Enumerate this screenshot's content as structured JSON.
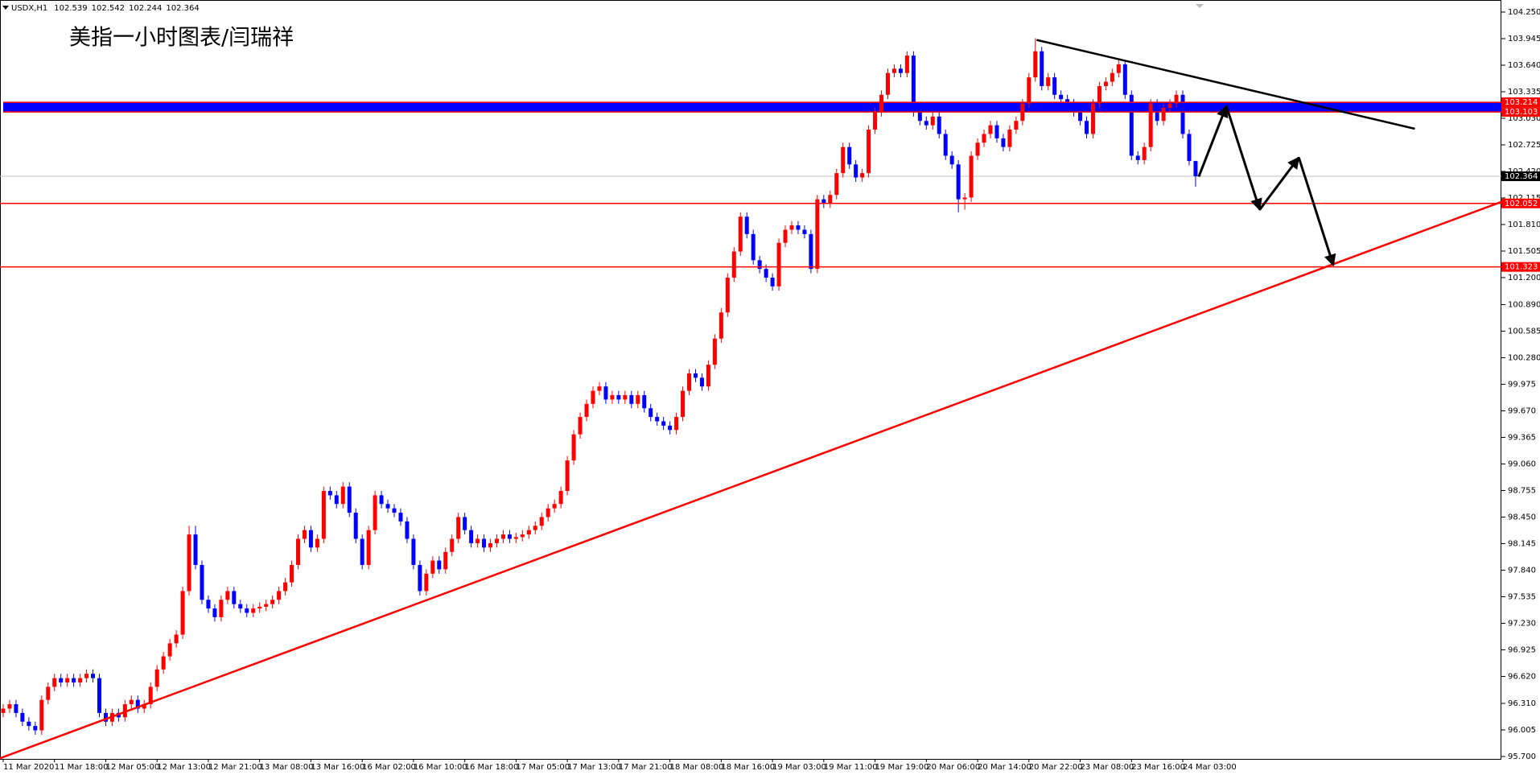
{
  "chart_data": {
    "type": "candlestick",
    "symbol": "USDX,H1",
    "title": "美指一小时图表/闫瑞祥",
    "bull_color": "#ff0000",
    "bear_color": "#0000ff",
    "categories": [
      "11 Mar 2020",
      null,
      null,
      null,
      null,
      null,
      null,
      null,
      "11 Mar 18:00",
      null,
      null,
      null,
      null,
      null,
      null,
      null,
      "12 Mar 05:00",
      null,
      null,
      null,
      null,
      null,
      null,
      null,
      "12 Mar 13:00",
      null,
      null,
      null,
      null,
      null,
      null,
      null,
      "12 Mar 21:00",
      null,
      null,
      null,
      null,
      null,
      null,
      null,
      "13 Mar 08:00",
      null,
      null,
      null,
      null,
      null,
      null,
      null,
      "13 Mar 16:00",
      null,
      null,
      null,
      null,
      null,
      null,
      null,
      "16 Mar 02:00",
      null,
      null,
      null,
      null,
      null,
      null,
      null,
      "16 Mar 10:00",
      null,
      null,
      null,
      null,
      null,
      null,
      null,
      "16 Mar 18:00",
      null,
      null,
      null,
      null,
      null,
      null,
      null,
      "17 Mar 05:00",
      null,
      null,
      null,
      null,
      null,
      null,
      null,
      "17 Mar 13:00",
      null,
      null,
      null,
      null,
      null,
      null,
      null,
      "17 Mar 21:00",
      null,
      null,
      null,
      null,
      null,
      null,
      null,
      "18 Mar 08:00",
      null,
      null,
      null,
      null,
      null,
      null,
      null,
      "18 Mar 16:00",
      null,
      null,
      null,
      null,
      null,
      null,
      null,
      "19 Mar 03:00",
      null,
      null,
      null,
      null,
      null,
      null,
      null,
      "19 Mar 11:00",
      null,
      null,
      null,
      null,
      null,
      null,
      null,
      "19 Mar 19:00",
      null,
      null,
      null,
      null,
      null,
      null,
      null,
      "20 Mar 06:00",
      null,
      null,
      null,
      null,
      null,
      null,
      null,
      "20 Mar 14:00",
      null,
      null,
      null,
      null,
      null,
      null,
      null,
      "20 Mar 22:00",
      null,
      null,
      null,
      null,
      null,
      null,
      null,
      "23 Mar 08:00",
      null,
      null,
      null,
      null,
      null,
      null,
      null,
      "23 Mar 16:00",
      null,
      null,
      null,
      null,
      null,
      null,
      null,
      "24 Mar 03:00",
      null,
      null
    ],
    "open": [
      96.2,
      96.25,
      96.3,
      96.2,
      96.1,
      96.05,
      96.0,
      96.35,
      96.5,
      96.6,
      96.55,
      96.6,
      96.55,
      96.6,
      96.65,
      96.6,
      96.2,
      96.1,
      96.2,
      96.15,
      96.3,
      96.35,
      96.25,
      96.3,
      96.5,
      96.7,
      96.85,
      97.0,
      97.1,
      97.6,
      98.25,
      97.9,
      97.5,
      97.4,
      97.3,
      97.5,
      97.6,
      97.45,
      97.4,
      97.35,
      97.4,
      97.42,
      97.45,
      97.5,
      97.6,
      97.7,
      97.9,
      98.2,
      98.3,
      98.1,
      98.2,
      98.75,
      98.7,
      98.6,
      98.8,
      98.5,
      98.2,
      97.9,
      98.3,
      98.7,
      98.6,
      98.55,
      98.5,
      98.4,
      98.2,
      97.9,
      97.6,
      97.8,
      97.95,
      97.85,
      98.05,
      98.2,
      98.45,
      98.3,
      98.15,
      98.2,
      98.1,
      98.15,
      98.2,
      98.25,
      98.2,
      98.22,
      98.25,
      98.3,
      98.35,
      98.45,
      98.55,
      98.6,
      98.75,
      99.1,
      99.4,
      99.6,
      99.75,
      99.9,
      99.95,
      99.8,
      99.85,
      99.8,
      99.85,
      99.75,
      99.85,
      99.7,
      99.6,
      99.55,
      99.5,
      99.45,
      99.6,
      99.9,
      100.1,
      100.05,
      99.95,
      100.2,
      100.5,
      100.8,
      101.2,
      101.5,
      101.9,
      101.7,
      101.4,
      101.3,
      101.2,
      101.1,
      101.6,
      101.75,
      101.8,
      101.75,
      101.7,
      101.3,
      102.1,
      102.05,
      102.15,
      102.4,
      102.7,
      102.5,
      102.35,
      102.4,
      102.9,
      103.1,
      103.3,
      103.55,
      103.6,
      103.55,
      103.75,
      103.1,
      103.0,
      102.95,
      103.05,
      102.85,
      102.6,
      102.5,
      102.1,
      102.12,
      102.6,
      102.75,
      102.85,
      102.95,
      102.8,
      102.7,
      102.9,
      103.0,
      103.2,
      103.5,
      103.8,
      103.4,
      103.5,
      103.3,
      103.25,
      103.2,
      103.1,
      103.0,
      102.85,
      103.2,
      103.4,
      103.45,
      103.55,
      103.65,
      103.3,
      102.6,
      102.55,
      102.7,
      103.2,
      103.0,
      103.15,
      103.2,
      103.3,
      102.85,
      102.539
    ],
    "high": [
      96.3,
      96.35,
      96.35,
      96.25,
      96.15,
      96.1,
      96.4,
      96.55,
      96.65,
      96.65,
      96.65,
      96.65,
      96.65,
      96.7,
      96.7,
      96.65,
      96.25,
      96.25,
      96.25,
      96.35,
      96.4,
      96.4,
      96.35,
      96.55,
      96.75,
      96.9,
      97.05,
      97.15,
      97.65,
      98.35,
      98.35,
      97.95,
      97.55,
      97.45,
      97.55,
      97.65,
      97.65,
      97.5,
      97.45,
      97.45,
      97.47,
      97.5,
      97.55,
      97.65,
      97.75,
      97.95,
      98.25,
      98.35,
      98.35,
      98.25,
      98.8,
      98.8,
      98.75,
      98.85,
      98.85,
      98.55,
      98.25,
      98.35,
      98.75,
      98.75,
      98.65,
      98.6,
      98.55,
      98.45,
      98.25,
      97.95,
      97.85,
      98.0,
      98.0,
      98.1,
      98.25,
      98.5,
      98.5,
      98.35,
      98.25,
      98.25,
      98.2,
      98.25,
      98.3,
      98.3,
      98.27,
      98.3,
      98.35,
      98.4,
      98.5,
      98.6,
      98.65,
      98.8,
      99.15,
      99.45,
      99.65,
      99.8,
      99.95,
      100.0,
      100.0,
      99.9,
      99.9,
      99.9,
      99.9,
      99.9,
      99.9,
      99.75,
      99.65,
      99.6,
      99.55,
      99.65,
      99.95,
      100.15,
      100.15,
      100.1,
      100.25,
      100.55,
      100.85,
      101.25,
      101.55,
      101.95,
      101.95,
      101.75,
      101.45,
      101.35,
      101.25,
      101.65,
      101.8,
      101.85,
      101.85,
      101.8,
      101.75,
      102.15,
      102.15,
      102.2,
      102.45,
      102.75,
      102.75,
      102.55,
      102.45,
      102.95,
      103.15,
      103.35,
      103.6,
      103.65,
      103.65,
      103.8,
      103.8,
      103.15,
      103.05,
      103.1,
      103.1,
      102.9,
      102.65,
      102.55,
      102.17,
      102.65,
      102.8,
      102.9,
      103.0,
      103.0,
      102.85,
      102.95,
      103.05,
      103.25,
      103.55,
      103.95,
      103.85,
      103.55,
      103.55,
      103.35,
      103.3,
      103.25,
      103.15,
      103.05,
      103.25,
      103.45,
      103.5,
      103.6,
      103.7,
      103.7,
      103.35,
      102.65,
      102.75,
      103.25,
      103.25,
      103.2,
      103.25,
      103.35,
      103.35,
      102.9,
      102.542
    ],
    "low": [
      96.15,
      96.2,
      96.15,
      96.05,
      96.0,
      95.95,
      95.95,
      96.3,
      96.45,
      96.5,
      96.5,
      96.5,
      96.5,
      96.55,
      96.55,
      96.15,
      96.05,
      96.05,
      96.1,
      96.1,
      96.25,
      96.2,
      96.2,
      96.25,
      96.45,
      96.65,
      96.8,
      96.95,
      97.05,
      97.55,
      97.85,
      97.45,
      97.35,
      97.25,
      97.25,
      97.45,
      97.4,
      97.35,
      97.3,
      97.3,
      97.35,
      97.37,
      97.4,
      97.45,
      97.55,
      97.65,
      97.85,
      98.15,
      98.05,
      98.05,
      98.15,
      98.65,
      98.55,
      98.55,
      98.45,
      98.15,
      97.85,
      97.85,
      98.25,
      98.55,
      98.5,
      98.45,
      98.35,
      98.15,
      97.85,
      97.55,
      97.55,
      97.75,
      97.8,
      97.8,
      98.0,
      98.15,
      98.25,
      98.1,
      98.1,
      98.05,
      98.05,
      98.1,
      98.15,
      98.15,
      98.15,
      98.17,
      98.2,
      98.25,
      98.3,
      98.4,
      98.5,
      98.55,
      98.7,
      99.05,
      99.35,
      99.55,
      99.7,
      99.85,
      99.75,
      99.75,
      99.75,
      99.75,
      99.7,
      99.7,
      99.65,
      99.55,
      99.5,
      99.45,
      99.4,
      99.4,
      99.55,
      99.85,
      100.0,
      99.9,
      99.9,
      100.15,
      100.45,
      100.75,
      101.15,
      101.45,
      101.65,
      101.35,
      101.25,
      101.15,
      101.05,
      101.05,
      101.55,
      101.7,
      101.7,
      101.65,
      101.25,
      101.25,
      102.0,
      102.0,
      102.1,
      102.35,
      102.45,
      102.3,
      102.3,
      102.35,
      102.85,
      103.05,
      103.25,
      103.5,
      103.5,
      103.5,
      103.05,
      102.95,
      102.9,
      102.9,
      102.8,
      102.55,
      102.45,
      101.95,
      101.98,
      102.07,
      102.55,
      102.7,
      102.8,
      102.75,
      102.65,
      102.65,
      102.85,
      102.95,
      103.15,
      103.45,
      103.35,
      103.35,
      103.25,
      103.2,
      103.15,
      103.05,
      102.95,
      102.8,
      102.8,
      103.15,
      103.35,
      103.4,
      103.5,
      103.25,
      102.55,
      102.5,
      102.5,
      102.65,
      102.95,
      102.95,
      103.1,
      103.15,
      102.8,
      102.489,
      102.244
    ],
    "close": [
      96.25,
      96.3,
      96.2,
      96.1,
      96.05,
      96.0,
      96.35,
      96.5,
      96.6,
      96.55,
      96.6,
      96.55,
      96.6,
      96.65,
      96.6,
      96.2,
      96.1,
      96.2,
      96.15,
      96.3,
      96.35,
      96.25,
      96.3,
      96.5,
      96.7,
      96.85,
      97.0,
      97.1,
      97.6,
      98.25,
      97.9,
      97.5,
      97.4,
      97.3,
      97.5,
      97.6,
      97.45,
      97.4,
      97.35,
      97.4,
      97.42,
      97.45,
      97.5,
      97.6,
      97.7,
      97.9,
      98.2,
      98.3,
      98.1,
      98.2,
      98.75,
      98.7,
      98.6,
      98.8,
      98.5,
      98.2,
      97.9,
      98.3,
      98.7,
      98.6,
      98.55,
      98.5,
      98.4,
      98.2,
      97.9,
      97.6,
      97.8,
      97.95,
      97.85,
      98.05,
      98.2,
      98.45,
      98.3,
      98.15,
      98.2,
      98.1,
      98.15,
      98.2,
      98.25,
      98.2,
      98.22,
      98.25,
      98.3,
      98.35,
      98.45,
      98.55,
      98.6,
      98.75,
      99.1,
      99.4,
      99.6,
      99.75,
      99.9,
      99.95,
      99.8,
      99.85,
      99.8,
      99.85,
      99.75,
      99.85,
      99.7,
      99.6,
      99.55,
      99.5,
      99.45,
      99.6,
      99.9,
      100.1,
      100.05,
      99.95,
      100.2,
      100.5,
      100.8,
      101.2,
      101.5,
      101.9,
      101.7,
      101.4,
      101.3,
      101.2,
      101.1,
      101.6,
      101.75,
      101.8,
      101.75,
      101.7,
      101.3,
      102.1,
      102.05,
      102.15,
      102.4,
      102.7,
      102.5,
      102.35,
      102.4,
      102.9,
      103.1,
      103.3,
      103.55,
      103.6,
      103.55,
      103.75,
      103.1,
      103.0,
      102.95,
      103.05,
      102.85,
      102.6,
      102.5,
      102.1,
      102.12,
      102.6,
      102.75,
      102.85,
      102.95,
      102.8,
      102.7,
      102.9,
      103.0,
      103.2,
      103.5,
      103.8,
      103.4,
      103.5,
      103.3,
      103.25,
      103.2,
      103.1,
      103.0,
      102.85,
      103.2,
      103.4,
      103.45,
      103.55,
      103.65,
      103.3,
      102.6,
      102.55,
      102.7,
      103.2,
      103.0,
      103.15,
      103.2,
      103.3,
      102.85,
      102.539,
      102.364
    ],
    "xlim": [
      -0.5,
      233.7
    ],
    "ylim": [
      95.7,
      104.25
    ],
    "yticks": [
      {
        "value": 104.25,
        "label": "104.250"
      },
      103.945,
      {
        "value": 103.64,
        "label": "103.640"
      },
      103.335,
      {
        "value": 103.03,
        "label": "103.030"
      },
      102.725,
      {
        "value": 102.42,
        "label": "102.420"
      },
      102.115,
      {
        "value": 101.81,
        "label": "101.810"
      },
      101.505,
      {
        "value": 101.2,
        "label": "101.200"
      },
      {
        "value": 100.89,
        "label": "100.890"
      },
      100.585,
      {
        "value": 100.28,
        "label": "100.280"
      },
      99.975,
      {
        "value": 99.67,
        "label": "99.670"
      },
      99.365,
      {
        "value": 99.06,
        "label": "99.060"
      },
      98.755,
      {
        "value": 98.45,
        "label": "98.450"
      },
      98.145,
      {
        "value": 97.84,
        "label": "97.840"
      },
      97.535,
      {
        "value": 97.23,
        "label": "97.230"
      },
      96.925,
      {
        "value": 96.62,
        "label": "96.620"
      },
      {
        "value": 96.31,
        "label": "96.310"
      },
      96.005,
      {
        "value": 95.7,
        "label": "95.700"
      }
    ],
    "levels": [
      103.214,
      103.103,
      102.052,
      101.323
    ],
    "level_color": "#ff0000",
    "band_color": "#0000ff",
    "price_line_color": "#c0c0c0",
    "trendlines": [
      {
        "color": "#ff0000",
        "points": [
          [
            -0.5,
            95.68
          ],
          [
            233.7,
            102.07
          ]
        ]
      },
      {
        "color": "#000000",
        "points": [
          [
            161.2,
            103.93
          ],
          [
            220.2,
            102.91
          ]
        ]
      }
    ],
    "arrows": {
      "color": "#000000",
      "points": [
        [
          186.5,
          102.36
        ],
        [
          190.8,
          103.17
        ],
        [
          196.0,
          101.98
        ],
        [
          202.1,
          102.58
        ],
        [
          207.5,
          101.34
        ]
      ]
    }
  }
}
